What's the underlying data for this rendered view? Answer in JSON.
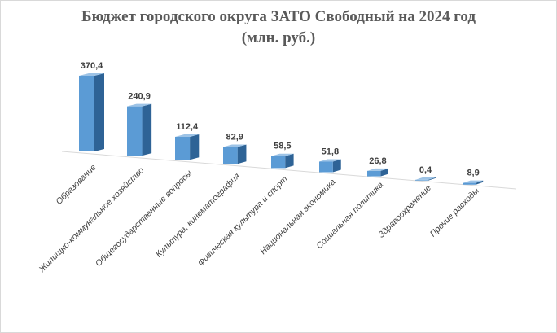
{
  "title_lines": [
    "Бюджет городского округа ЗАТО Свободный на 2024 год",
    "(млн. руб.)"
  ],
  "colors": {
    "bar_front": "#5b9bd5",
    "bar_side": "#2e6396",
    "bar_top": "#9dc3e6",
    "label": "#404040",
    "axis_line": "#d9d9d9"
  },
  "chart_data": {
    "type": "bar",
    "title": "Бюджет городского округа ЗАТО Свободный на 2024 год (млн. руб.)",
    "categories": [
      "Образование",
      "Жилищно-коммунальное хозяйство",
      "Общегосударственные вопросы",
      "Культура, кинематография",
      "Физическая культура и спорт",
      "Национальная экономика",
      "Социальная политика",
      "Здравоохранение",
      "Прочие расходы"
    ],
    "values": [
      370.4,
      240.9,
      112.4,
      82.9,
      58.5,
      51.8,
      26.8,
      0.4,
      8.9
    ],
    "value_labels": [
      "370,4",
      "240,9",
      "112,4",
      "82,9",
      "58,5",
      "51,8",
      "26,8",
      "0,4",
      "8,9"
    ],
    "ylim": [
      0,
      370.4
    ],
    "legend": "none",
    "grid": false,
    "style": "3d-perspective"
  }
}
